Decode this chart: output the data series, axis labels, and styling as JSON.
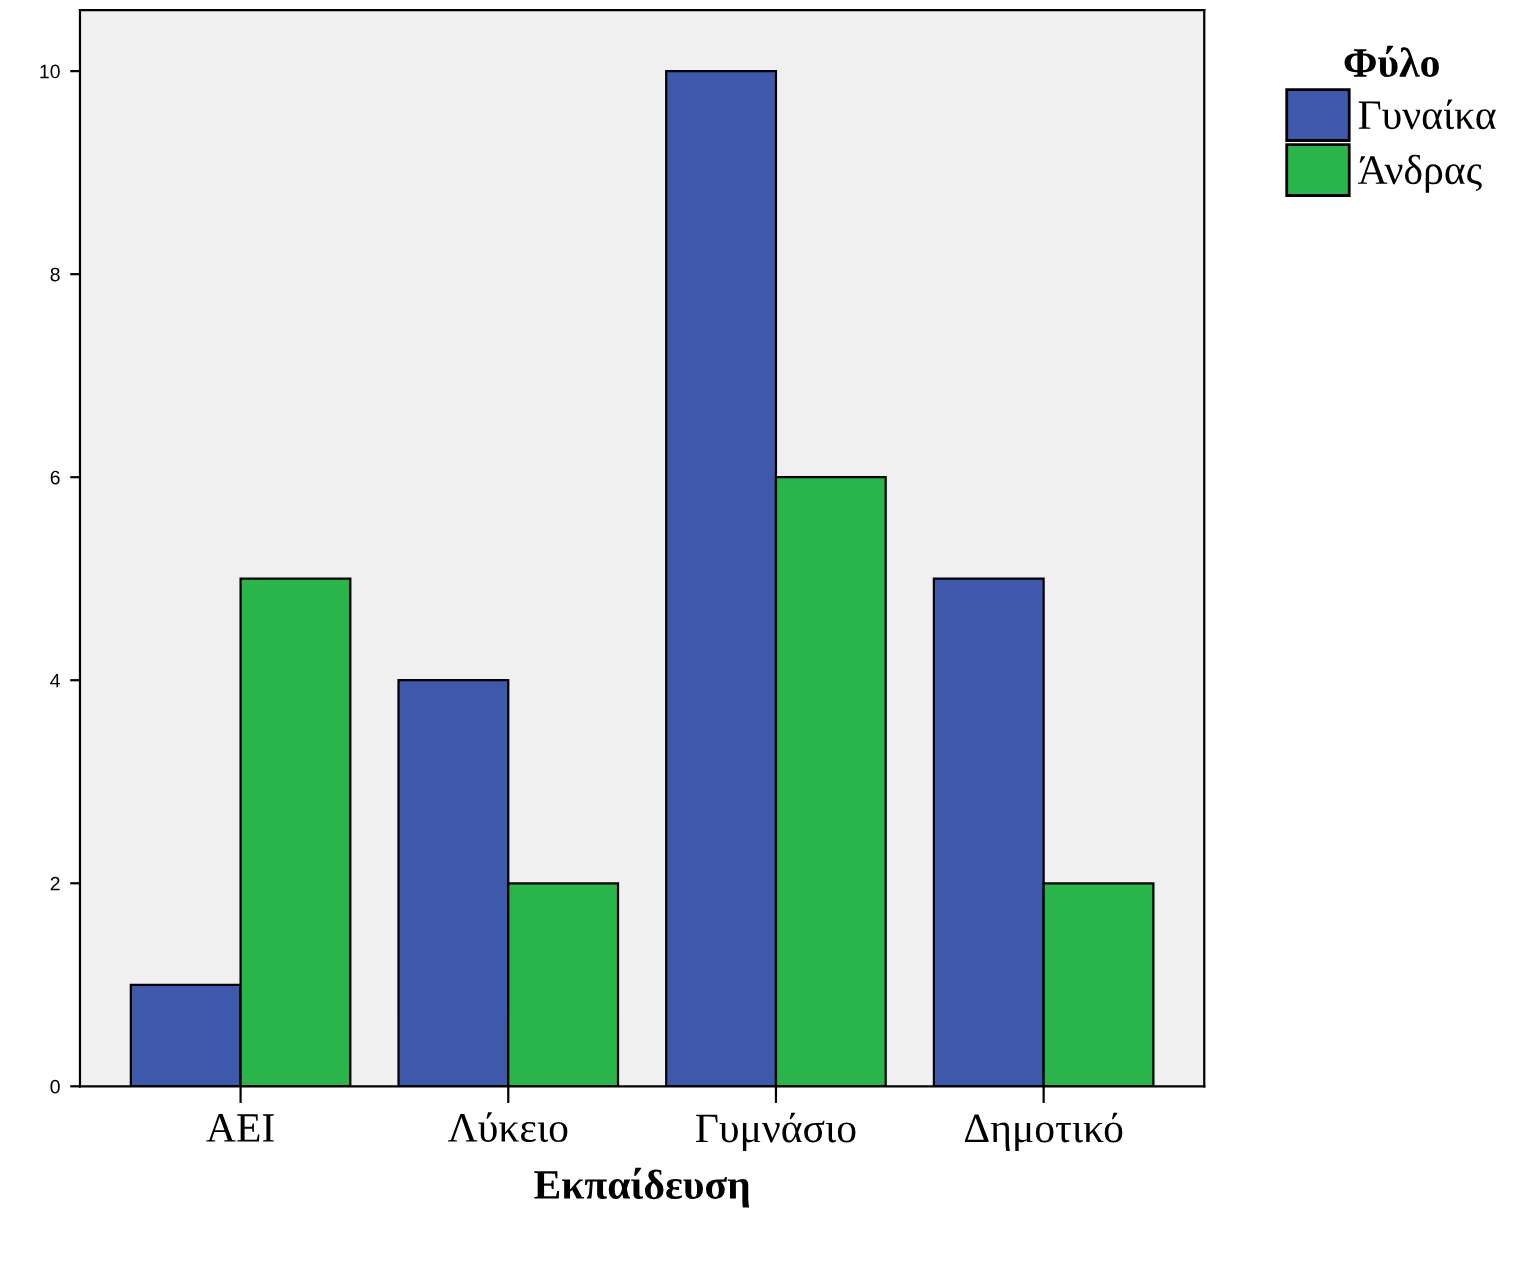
{
  "chart_data": {
    "type": "bar",
    "xlabel": "Εκπαίδευση",
    "legend_title": "Φύλο",
    "categories": [
      "ΑΕΙ",
      "Λύκειο",
      "Γυμνάσιο",
      "Δημοτικό"
    ],
    "series": [
      {
        "name": "Γυναίκα",
        "color": "#3e58ac",
        "values": [
          1,
          4,
          10,
          5
        ]
      },
      {
        "name": "Άνδρας",
        "color": "#2ab54a",
        "values": [
          5,
          2,
          6,
          2
        ]
      }
    ],
    "ylim": [
      0,
      10.6
    ],
    "yticks": [
      0,
      2,
      4,
      6,
      8,
      10
    ],
    "grid": false,
    "legend": "top right"
  }
}
